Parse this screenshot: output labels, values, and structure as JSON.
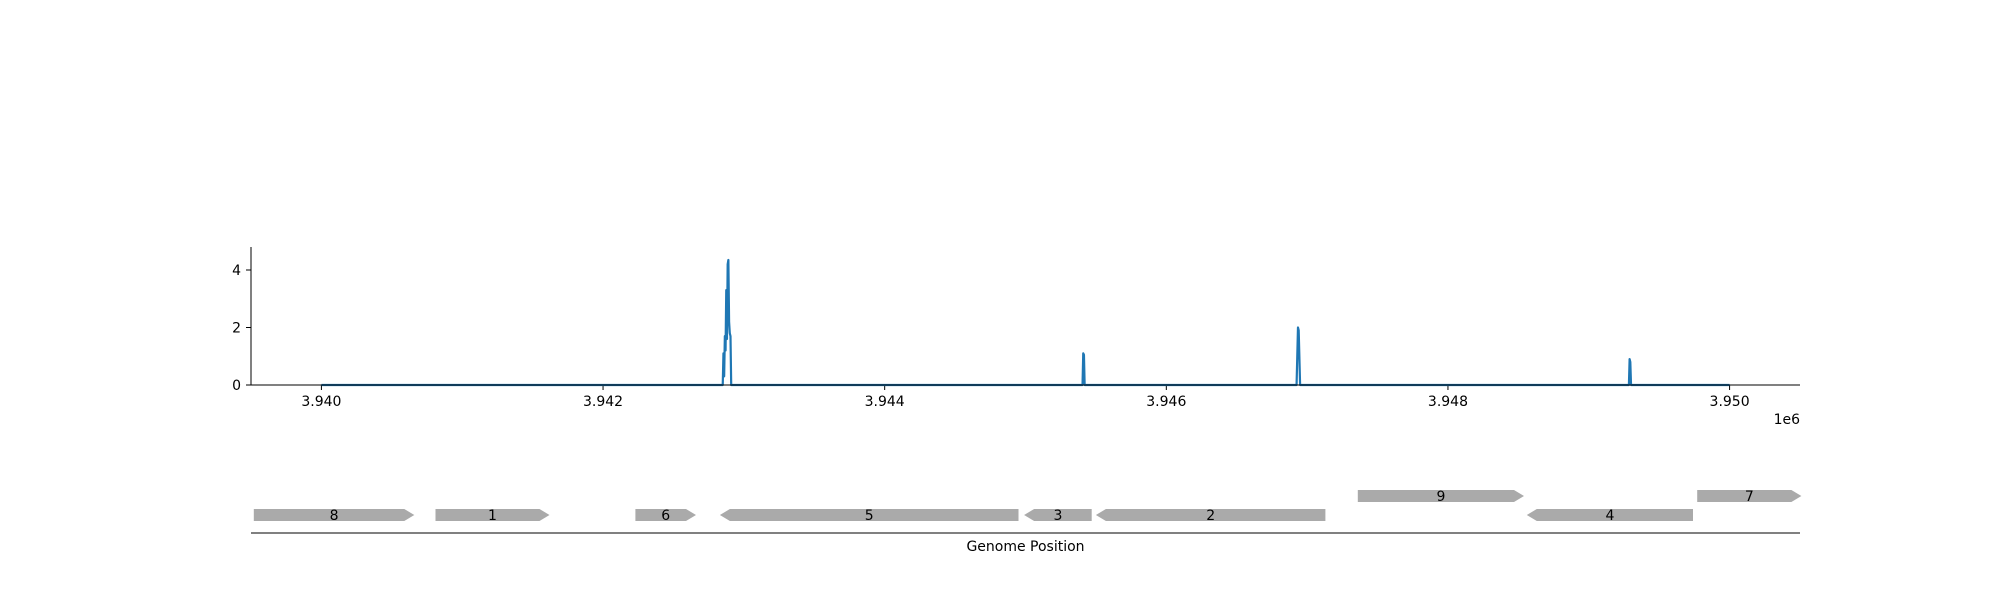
{
  "chart_data": [
    {
      "type": "line",
      "title": "",
      "xlabel": "",
      "ylabel": "",
      "xlim": [
        3.9395,
        3.9505
      ],
      "ylim": [
        0,
        4.8
      ],
      "x_offset_label": "1e6",
      "x_ticks": [
        3.94,
        3.942,
        3.944,
        3.946,
        3.948,
        3.95
      ],
      "x_tick_labels": [
        "3.940",
        "3.942",
        "3.944",
        "3.946",
        "3.948",
        "3.950"
      ],
      "y_ticks": [
        0,
        2,
        4
      ],
      "y_tick_labels": [
        "0",
        "2",
        "4"
      ],
      "color": "#1f77b4",
      "grid": false,
      "series": [
        {
          "x": [
            3.94,
            3.94285,
            3.942855,
            3.94286,
            3.942865,
            3.94287,
            3.942875,
            3.94288,
            3.942885,
            3.94289,
            3.942895,
            3.9429,
            3.942905,
            3.94291,
            3.945405,
            3.94541,
            3.945415,
            3.94542,
            3.946925,
            3.94693,
            3.946935,
            3.94694,
            3.94695,
            3.949285,
            3.94929,
            3.949295,
            3.9493,
            3.95
          ],
          "y": [
            0,
            0,
            1.1,
            0.3,
            1.7,
            1.2,
            3.3,
            1.6,
            4.2,
            4.35,
            2.2,
            1.8,
            1.7,
            0,
            0,
            1.1,
            1.05,
            0,
            0,
            1.0,
            2.0,
            1.9,
            0,
            0,
            0.9,
            0.8,
            0,
            0
          ]
        }
      ]
    },
    {
      "type": "gene-track",
      "xlabel": "Genome Position",
      "color": "#aaaaaa",
      "genes": [
        {
          "label": "8",
          "start": 3.93952,
          "end": 3.94066,
          "strand": "+",
          "row": 0
        },
        {
          "label": "1",
          "start": 3.94081,
          "end": 3.94162,
          "strand": "+",
          "row": 0
        },
        {
          "label": "6",
          "start": 3.94223,
          "end": 3.94266,
          "strand": "+",
          "row": 0
        },
        {
          "label": "5",
          "start": 3.94283,
          "end": 3.94495,
          "strand": "-",
          "row": 0
        },
        {
          "label": "3",
          "start": 3.94499,
          "end": 3.94547,
          "strand": "-",
          "row": 0
        },
        {
          "label": "2",
          "start": 3.9455,
          "end": 3.94713,
          "strand": "-",
          "row": 0
        },
        {
          "label": "9",
          "start": 3.94736,
          "end": 3.94854,
          "strand": "+",
          "row": 1
        },
        {
          "label": "4",
          "start": 3.94856,
          "end": 3.94974,
          "strand": "-",
          "row": 0
        },
        {
          "label": "7",
          "start": 3.94977,
          "end": 3.95051,
          "strand": "+",
          "row": 1
        }
      ]
    }
  ]
}
